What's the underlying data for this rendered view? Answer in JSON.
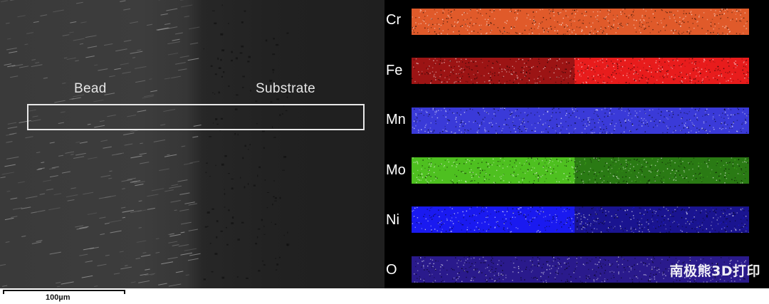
{
  "sem_image": {
    "labels": {
      "bead": "Bead",
      "substrate": "Substrate"
    },
    "scale_bar": {
      "text": "100µm"
    }
  },
  "eds_maps": {
    "elements": [
      {
        "symbol": "Cr",
        "bead_color": "#e05a2a",
        "substrate_color": "#e05a2a"
      },
      {
        "symbol": "Fe",
        "bead_color": "#9c1414",
        "substrate_color": "#e81c1c"
      },
      {
        "symbol": "Mn",
        "bead_color": "#3a3ad8",
        "substrate_color": "#3a3ad8"
      },
      {
        "symbol": "Mo",
        "bead_color": "#4ec020",
        "substrate_color": "#2a7a14"
      },
      {
        "symbol": "Ni",
        "bead_color": "#1a1af0",
        "substrate_color": "#1a1490"
      },
      {
        "symbol": "O",
        "bead_color": "#2a1a8c",
        "substrate_color": "#2a1a8c"
      }
    ]
  },
  "watermark": "南极熊3D打印"
}
